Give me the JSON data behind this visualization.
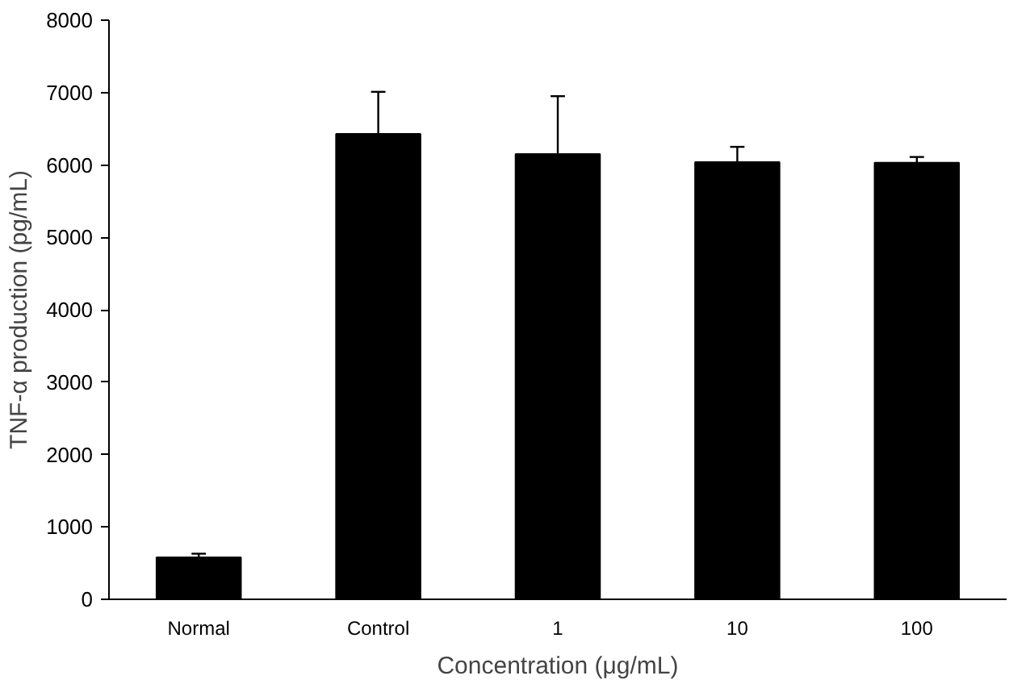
{
  "chart_data": {
    "type": "bar",
    "xlabel": "Concentration (μg/mL)",
    "ylabel": "TNF-α production (pg/mL)",
    "categories": [
      "Normal",
      "Control",
      "1",
      "10",
      "100"
    ],
    "values": [
      580,
      6430,
      6150,
      6040,
      6030
    ],
    "errors": [
      50,
      580,
      800,
      210,
      80
    ],
    "color": "#000000",
    "ylim": [
      0,
      8000
    ],
    "yticks": [
      0,
      1000,
      2000,
      3000,
      4000,
      5000,
      6000,
      7000,
      8000
    ],
    "grid": false
  }
}
